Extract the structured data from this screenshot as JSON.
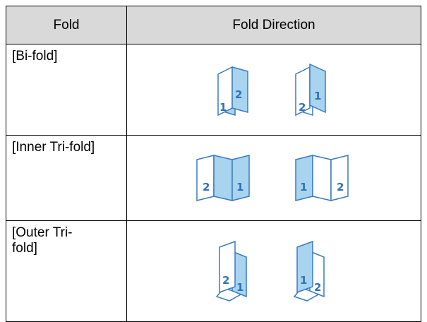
{
  "table": {
    "header": [
      "Fold",
      "Fold Direction"
    ],
    "rows": [
      {
        "fold": "[Bi-fold]",
        "directions": [
          [
            "1",
            "2"
          ],
          [
            "2",
            "1"
          ]
        ]
      },
      {
        "fold": "[Inner Tri-fold]",
        "directions": [
          [
            "2",
            "1"
          ],
          [
            "1",
            "2"
          ]
        ]
      },
      {
        "fold": "[Outer Tri-fold]",
        "directions": [
          [
            "2",
            "1"
          ],
          [
            "1",
            "2"
          ]
        ]
      }
    ]
  }
}
